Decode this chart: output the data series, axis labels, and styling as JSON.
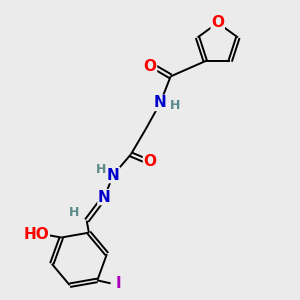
{
  "background_color": "#ebebeb",
  "atom_colors": {
    "O": "#ff0000",
    "N": "#0000cc",
    "H": "#5a8a8a",
    "I": "#aa00bb",
    "C": "#000000"
  },
  "font_size": 11,
  "font_size_small": 9,
  "figsize": [
    3.0,
    3.0
  ],
  "dpi": 100
}
